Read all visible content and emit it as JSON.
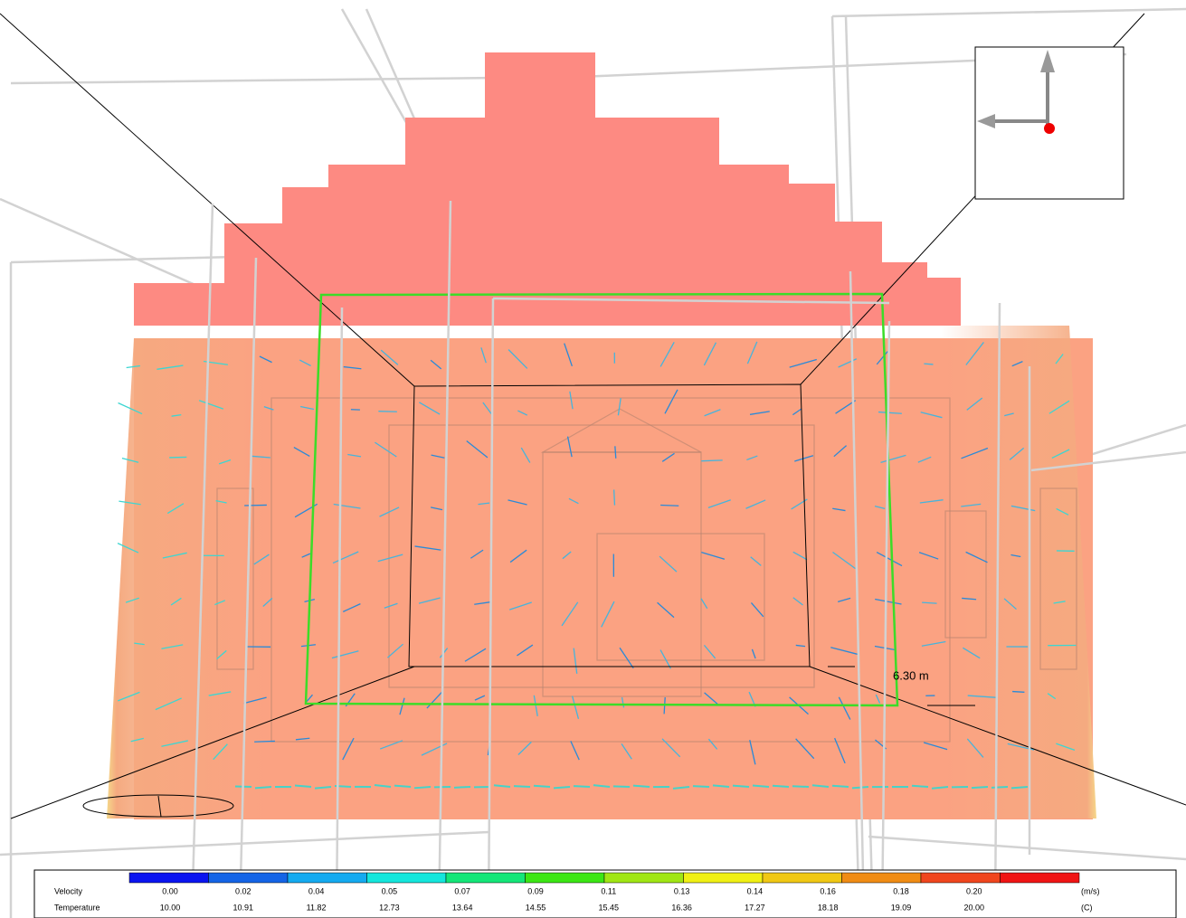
{
  "viewport": {
    "dimension_label": "6.30 m"
  },
  "legend": {
    "colors": [
      "#0a14f0",
      "#1464e6",
      "#14aaf0",
      "#14e6dc",
      "#14e678",
      "#3ce614",
      "#a0e614",
      "#f0f014",
      "#f0c814",
      "#f08c14",
      "#f0461e",
      "#f01414"
    ],
    "rows": [
      {
        "name": "Velocity",
        "unit": "(m/s)",
        "labels": [
          "0.00",
          "0.02",
          "0.04",
          "0.05",
          "0.07",
          "0.09",
          "0.11",
          "0.13",
          "0.14",
          "0.16",
          "0.18",
          "0.20"
        ]
      },
      {
        "name": "Temperature",
        "unit": "(C)",
        "labels": [
          "10.00",
          "10.91",
          "11.82",
          "12.73",
          "13.64",
          "14.55",
          "15.45",
          "16.36",
          "17.27",
          "18.18",
          "19.09",
          "20.00"
        ]
      }
    ]
  }
}
